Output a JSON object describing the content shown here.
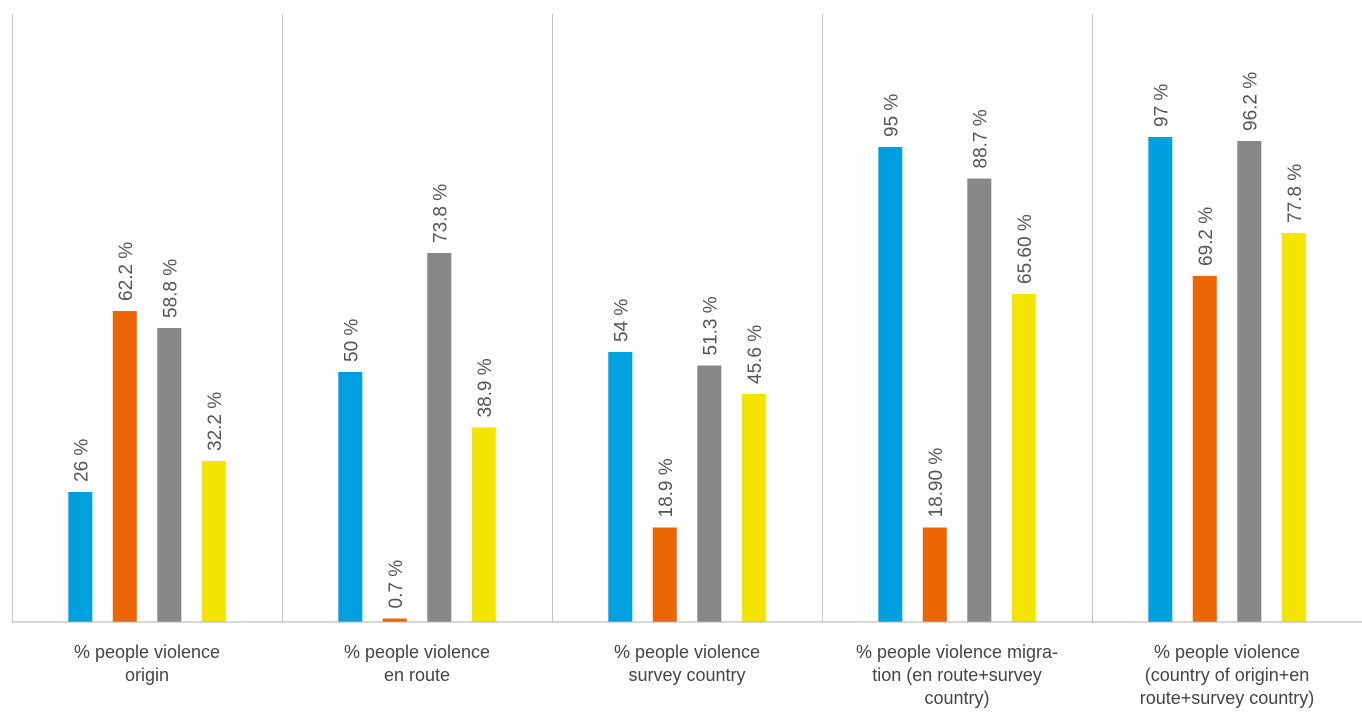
{
  "chart_data": {
    "type": "bar",
    "title": "",
    "xlabel": "",
    "ylabel": "",
    "ylim": [
      0,
      100
    ],
    "grid": false,
    "legend": "none",
    "categories": [
      {
        "lines": [
          "% people violence",
          "origin"
        ]
      },
      {
        "lines": [
          "% people violence",
          "en route"
        ]
      },
      {
        "lines": [
          "% people violence",
          "survey country"
        ]
      },
      {
        "lines": [
          "% people violence migra-",
          "tion (en route+survey",
          "country)"
        ]
      },
      {
        "lines": [
          "% people violence",
          "(country of origin+en",
          "route+survey country)"
        ]
      }
    ],
    "series": [
      {
        "color": "#009fdf",
        "values": [
          26,
          50,
          54,
          95,
          97
        ],
        "labels": [
          "26 %",
          "50 %",
          "54 %",
          "95 %",
          "97 %"
        ]
      },
      {
        "color": "#ec6608",
        "values": [
          62.2,
          0.7,
          18.9,
          18.9,
          69.2
        ],
        "labels": [
          "62.2 %",
          "0.7 %",
          "18.9 %",
          "18.90 %",
          "69.2 %"
        ]
      },
      {
        "color": "#878787",
        "values": [
          58.8,
          73.8,
          51.3,
          88.7,
          96.2
        ],
        "labels": [
          "58.8 %",
          "73.8 %",
          "51.3 %",
          "88.7 %",
          "96.2 %"
        ]
      },
      {
        "color": "#f3e500",
        "values": [
          32.2,
          38.9,
          45.6,
          65.6,
          77.8
        ],
        "labels": [
          "32.2 %",
          "38.9 %",
          "45.6 %",
          "65.60 %",
          "77.8 %"
        ]
      }
    ]
  }
}
